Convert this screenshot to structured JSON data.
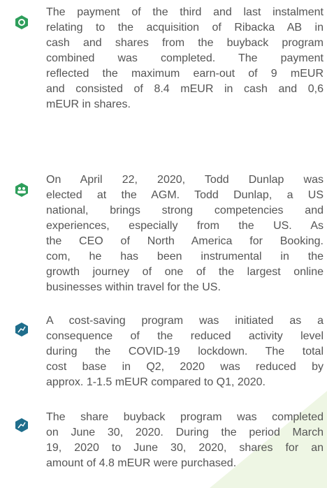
{
  "items": [
    {
      "lines": [
        "The payment of the third and last instalment",
        "relating to the acquisition of Ribacka AB in",
        "cash and shares from the buyback program",
        "combined was completed. The payment",
        "reflected the maximum earn-out of 9 mEUR",
        "and consisted of 8.4 mEUR in cash and 0,6",
        "mEUR in shares."
      ]
    },
    {
      "lines": [
        "On April 22, 2020, Todd Dunlap was",
        "elected at the AGM. Todd Dunlap, a US",
        "national, brings strong competencies and",
        "experiences, especially from the US. As",
        "the CEO of North America for Booking.",
        "com, he has been instrumental in the",
        "growth journey of one of the largest online",
        "businesses within travel for the US."
      ]
    },
    {
      "lines": [
        "A cost-saving program was initiated as a",
        "consequence of the reduced activity level",
        "during the COVID-19 lockdown. The total",
        "cost base in Q2, 2020 was reduced by",
        "approx. 1-1.5 mEUR compared to Q1, 2020."
      ]
    },
    {
      "lines": [
        "The share buyback program was completed",
        "on June 30, 2020. During the period March",
        "19, 2020 to June 30, 2020, shares for an",
        "amount of 4.8 mEUR were purchased."
      ]
    }
  ]
}
